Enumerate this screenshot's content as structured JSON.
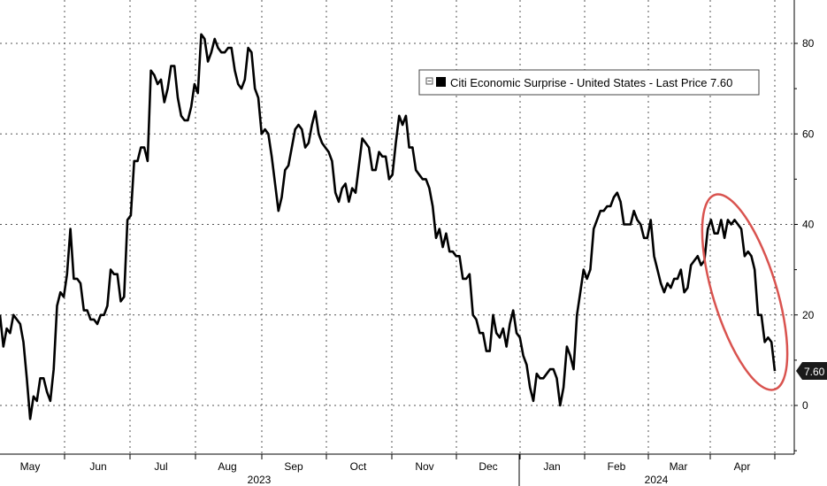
{
  "chart_data": {
    "type": "line",
    "title": "",
    "xlabel": "",
    "ylabel": "",
    "ylim": [
      -10,
      90
    ],
    "yticks": [
      0,
      20,
      40,
      60,
      80
    ],
    "months": [
      "May",
      "Jun",
      "Jul",
      "Aug",
      "Sep",
      "Oct",
      "Nov",
      "Dec",
      "Jan",
      "Feb",
      "Mar",
      "Apr"
    ],
    "years": [
      "2023",
      "2024"
    ],
    "grid": true,
    "legend": {
      "placement": "top-right",
      "label": "Citi Economic Surprise - United States - Last Price 7.60"
    },
    "last_value_label": "7.60",
    "colors": {
      "series": "#000000",
      "highlight_ellipse": "#d9534f",
      "last_value_tag": "#1a1a1a"
    },
    "series": [
      {
        "name": "Citi Economic Surprise - United States",
        "values": [
          20,
          13,
          17,
          16,
          20,
          19,
          18,
          14,
          6,
          -3,
          2,
          1,
          6,
          6,
          3,
          1,
          8,
          22,
          25,
          24,
          29,
          39,
          28,
          28,
          27,
          21,
          21,
          19,
          19,
          18,
          20,
          20,
          22,
          30,
          29,
          29,
          23,
          24,
          41,
          42,
          54,
          54,
          57,
          57,
          54,
          74,
          73,
          71,
          72,
          67,
          70,
          75,
          75,
          68,
          64,
          63,
          63,
          66,
          71,
          69,
          82,
          81,
          76,
          78,
          81,
          79,
          78,
          78,
          79,
          79,
          74,
          71,
          70,
          72,
          79,
          78,
          70,
          68,
          60,
          61,
          60,
          55,
          49,
          43,
          46,
          52,
          53,
          57,
          61,
          62,
          61,
          57,
          58,
          62,
          65,
          60,
          58,
          57,
          56,
          54,
          47,
          45,
          48,
          49,
          45,
          48,
          47,
          53,
          59,
          58,
          57,
          52,
          52,
          56,
          55,
          55,
          50,
          51,
          58,
          64,
          62,
          64,
          57,
          57,
          52,
          51,
          50,
          50,
          48,
          44,
          37,
          39,
          35,
          38,
          34,
          34,
          33,
          33,
          28,
          28,
          29,
          20,
          19,
          16,
          16,
          12,
          12,
          20,
          16,
          15,
          17,
          13,
          18,
          21,
          16,
          15,
          11,
          9,
          4,
          1,
          7,
          6,
          6,
          7,
          8,
          8,
          6,
          0,
          4,
          13,
          11,
          8,
          20,
          25,
          30,
          28,
          30,
          39,
          41,
          43,
          43,
          44,
          44,
          46,
          47,
          45,
          40,
          40,
          40,
          43,
          41,
          40,
          37,
          37,
          41,
          33,
          30,
          27,
          25,
          27,
          26,
          28,
          28,
          30,
          25,
          26,
          31,
          32,
          33,
          31,
          32,
          39,
          41,
          38,
          38,
          41,
          37,
          41,
          40,
          41,
          40,
          39,
          33,
          34,
          33,
          30,
          20,
          20,
          14,
          15,
          14,
          7.6
        ]
      }
    ]
  }
}
